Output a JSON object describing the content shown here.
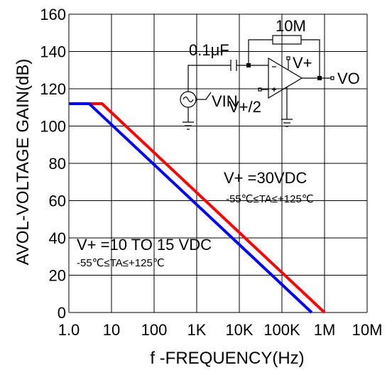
{
  "chart_data": {
    "type": "line",
    "title": "",
    "xlabel": "f -FREQUENCY(Hz)",
    "ylabel": "AVOL-VOLTAGE GAIN(dB)",
    "x_scale": "log",
    "xlim": [
      1,
      10000000
    ],
    "ylim": [
      0,
      160
    ],
    "grid": true,
    "x_tick_values": [
      1,
      10,
      100,
      1000,
      10000,
      100000,
      1000000,
      10000000
    ],
    "x_tick_labels": [
      "1.0",
      "10",
      "100",
      "1K",
      "10K",
      "100K",
      "1M",
      "10M"
    ],
    "y_tick_values": [
      0,
      20,
      40,
      60,
      80,
      100,
      120,
      140,
      160
    ],
    "y_tick_labels": [
      "0",
      "20",
      "40",
      "60",
      "80",
      "100",
      "120",
      "140",
      "160"
    ],
    "series": [
      {
        "name": "V+ =30VDC",
        "color": "#ff0000",
        "x": [
          1,
          6,
          1000000
        ],
        "y": [
          112,
          112,
          0
        ]
      },
      {
        "name": "V+ =10 TO 15 VDC",
        "color": "#0000ff",
        "x": [
          1,
          3,
          500000
        ],
        "y": [
          112,
          112,
          0
        ]
      }
    ],
    "annotations": [
      {
        "id": "red-cond",
        "line1": "V+ =30VDC",
        "line2": "-55℃≤TA≤+125℃"
      },
      {
        "id": "blue-cond",
        "line1": "V+ =10 TO 15 VDC",
        "line2": "-55℃≤TA≤+125℃"
      }
    ]
  },
  "circuit": {
    "cap_label": "0.1μF",
    "res_label": "10M",
    "vin_label": "VIN",
    "vplus_label": "V+",
    "vhalf_label": "V+/2",
    "vo_label": "VO"
  }
}
